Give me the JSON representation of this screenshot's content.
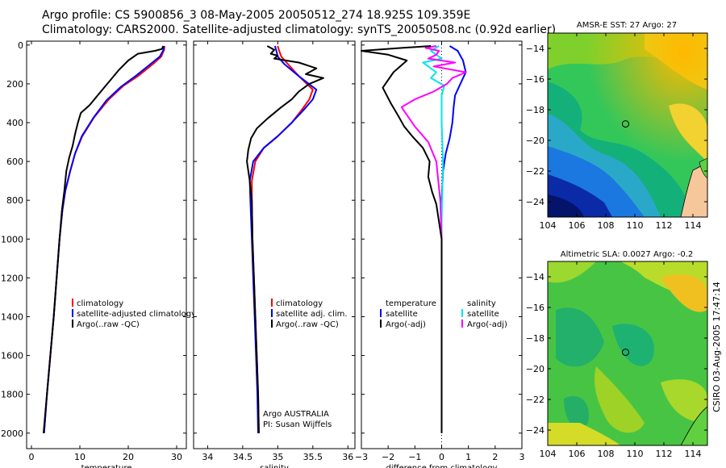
{
  "header": {
    "line1": "Argo profile: CS 5900856_3 08-May-2005 20050512_274 18.925S 109.359E",
    "line2": "Climatology: CARS2000. Satellite-adjusted climatology: synTS_20050508.nc (0.92d earlier)"
  },
  "credit": "CSIRO 03-Aug-2005 17:47:14",
  "argo_note": {
    "line1": "Argo AUSTRALIA",
    "line2": "PI: Susan Wijffels"
  },
  "colors": {
    "climatology": "#ff0000",
    "satellite": "#0000ff",
    "argo": "#000000",
    "sal_satellite": "#00e5ee",
    "sal_argo": "#ff00ff"
  },
  "chart_data": [
    {
      "type": "line",
      "id": "temperature",
      "xlabel": "temperature",
      "ylabel": "",
      "xlim": [
        -1,
        32
      ],
      "ylim": [
        2080,
        -20
      ],
      "y_reversed": true,
      "xticks": [
        0,
        10,
        20,
        30
      ],
      "yticks": [
        0,
        200,
        400,
        600,
        800,
        1000,
        1200,
        1400,
        1600,
        1800,
        2000
      ],
      "legend": [
        "climatology",
        "satellite-adjusted climatology",
        "Argo(..raw -QC)"
      ],
      "series": [
        {
          "name": "climatology",
          "color": "#ff0000",
          "points": [
            [
              27.5,
              5
            ],
            [
              27.4,
              25
            ],
            [
              26.8,
              60
            ],
            [
              25,
              100
            ],
            [
              22,
              160
            ],
            [
              19,
              210
            ],
            [
              16,
              280
            ],
            [
              13,
              370
            ],
            [
              10.5,
              470
            ],
            [
              9,
              560
            ],
            [
              8,
              650
            ],
            [
              7,
              750
            ],
            [
              6.4,
              850
            ],
            [
              5.8,
              1000
            ],
            [
              5.2,
              1200
            ],
            [
              4.6,
              1400
            ],
            [
              3.9,
              1600
            ],
            [
              3.2,
              1800
            ],
            [
              2.6,
              2000
            ]
          ]
        },
        {
          "name": "satellite-adjusted climatology",
          "color": "#0000ff",
          "points": [
            [
              27.3,
              5
            ],
            [
              27.3,
              25
            ],
            [
              26.5,
              60
            ],
            [
              24.5,
              100
            ],
            [
              21.5,
              160
            ],
            [
              18.5,
              215
            ],
            [
              15.5,
              285
            ],
            [
              12.8,
              375
            ],
            [
              10.4,
              470
            ],
            [
              9,
              560
            ],
            [
              8,
              650
            ],
            [
              7,
              750
            ],
            [
              6.4,
              850
            ],
            [
              5.8,
              1000
            ],
            [
              5.2,
              1200
            ],
            [
              4.6,
              1400
            ],
            [
              3.9,
              1600
            ],
            [
              3.2,
              1800
            ],
            [
              2.6,
              2000
            ]
          ]
        },
        {
          "name": "Argo(..raw -QC)",
          "color": "#000000",
          "points": [
            [
              27.2,
              5
            ],
            [
              27,
              20
            ],
            [
              25.5,
              30
            ],
            [
              22,
              45
            ],
            [
              20,
              80
            ],
            [
              18,
              130
            ],
            [
              16,
              190
            ],
            [
              14,
              250
            ],
            [
              12,
              310
            ],
            [
              10.2,
              350
            ],
            [
              9.6,
              400
            ],
            [
              9,
              460
            ],
            [
              8.5,
              520
            ],
            [
              7.8,
              580
            ],
            [
              7.2,
              650
            ],
            [
              6.8,
              750
            ],
            [
              6.3,
              850
            ],
            [
              5.8,
              1000
            ],
            [
              5.2,
              1200
            ],
            [
              4.6,
              1400
            ],
            [
              3.9,
              1600
            ],
            [
              3.2,
              1800
            ],
            [
              2.5,
              2000
            ]
          ]
        }
      ]
    },
    {
      "type": "line",
      "id": "salinity",
      "xlabel": "salinity",
      "ylabel": "",
      "xlim": [
        33.8,
        36.1
      ],
      "ylim": [
        2080,
        -20
      ],
      "y_reversed": true,
      "xticks": [
        34,
        34.5,
        35,
        35.5,
        36
      ],
      "legend": [
        "climatology",
        "satellite adj. clim.",
        "Argo(..raw -QC)"
      ],
      "series": [
        {
          "name": "climatology",
          "color": "#ff0000",
          "points": [
            [
              35.0,
              5
            ],
            [
              35.02,
              30
            ],
            [
              35.05,
              60
            ],
            [
              35.15,
              100
            ],
            [
              35.3,
              160
            ],
            [
              35.5,
              230
            ],
            [
              35.45,
              280
            ],
            [
              35.35,
              330
            ],
            [
              35.2,
              400
            ],
            [
              35.0,
              470
            ],
            [
              34.8,
              530
            ],
            [
              34.68,
              600
            ],
            [
              34.63,
              700
            ],
            [
              34.63,
              800
            ],
            [
              34.64,
              1000
            ],
            [
              34.66,
              1200
            ],
            [
              34.68,
              1400
            ],
            [
              34.7,
              1600
            ],
            [
              34.72,
              1800
            ],
            [
              34.73,
              2000
            ]
          ]
        },
        {
          "name": "satellite adj. clim.",
          "color": "#0000ff",
          "points": [
            [
              34.96,
              5
            ],
            [
              34.98,
              30
            ],
            [
              35.0,
              60
            ],
            [
              35.1,
              100
            ],
            [
              35.3,
              160
            ],
            [
              35.55,
              230
            ],
            [
              35.5,
              280
            ],
            [
              35.38,
              330
            ],
            [
              35.2,
              400
            ],
            [
              35.0,
              470
            ],
            [
              34.8,
              530
            ],
            [
              34.65,
              600
            ],
            [
              34.6,
              700
            ],
            [
              34.61,
              800
            ],
            [
              34.63,
              1000
            ],
            [
              34.65,
              1200
            ],
            [
              34.67,
              1400
            ],
            [
              34.69,
              1600
            ],
            [
              34.71,
              1800
            ],
            [
              34.72,
              2000
            ]
          ]
        },
        {
          "name": "Argo(..raw -QC)",
          "color": "#000000",
          "points": [
            [
              34.85,
              5
            ],
            [
              34.95,
              25
            ],
            [
              34.9,
              45
            ],
            [
              35.0,
              55
            ],
            [
              34.95,
              70
            ],
            [
              35.3,
              90
            ],
            [
              35.55,
              120
            ],
            [
              35.4,
              150
            ],
            [
              35.65,
              170
            ],
            [
              35.45,
              200
            ],
            [
              35.3,
              240
            ],
            [
              35.2,
              280
            ],
            [
              35.05,
              320
            ],
            [
              34.85,
              380
            ],
            [
              34.7,
              430
            ],
            [
              34.62,
              480
            ],
            [
              34.58,
              540
            ],
            [
              34.56,
              600
            ],
            [
              34.6,
              700
            ],
            [
              34.63,
              800
            ],
            [
              34.64,
              1000
            ],
            [
              34.66,
              1200
            ],
            [
              34.68,
              1400
            ],
            [
              34.7,
              1600
            ],
            [
              34.72,
              1800
            ],
            [
              34.73,
              2000
            ]
          ]
        }
      ]
    },
    {
      "type": "line",
      "id": "difference",
      "xlabel": "difference from climatology",
      "ylabel": "",
      "xlim": [
        -3,
        3
      ],
      "ylim": [
        2080,
        -20
      ],
      "y_reversed": true,
      "xticks": [
        -3,
        -2,
        -1,
        0,
        1,
        2,
        3
      ],
      "legend_left": [
        "temperature",
        "satellite",
        "Argo(-adj)"
      ],
      "legend_right": [
        "salinity",
        "satellite",
        "Argo(-adj)"
      ],
      "series": [
        {
          "name": "temperature satellite",
          "color": "#0000ff",
          "points": [
            [
              0.3,
              5
            ],
            [
              0.6,
              30
            ],
            [
              0.8,
              80
            ],
            [
              0.9,
              140
            ],
            [
              0.7,
              200
            ],
            [
              0.5,
              260
            ],
            [
              0.45,
              320
            ],
            [
              0.4,
              400
            ],
            [
              0.3,
              480
            ],
            [
              0.15,
              560
            ],
            [
              0.05,
              650
            ],
            [
              0,
              800
            ],
            [
              0,
              1000
            ],
            [
              0,
              2000
            ]
          ]
        },
        {
          "name": "salinity satellite",
          "color": "#00e5ee",
          "points": [
            [
              -0.1,
              5
            ],
            [
              -0.4,
              30
            ],
            [
              -0.2,
              50
            ],
            [
              0.0,
              70
            ],
            [
              -0.7,
              90
            ],
            [
              -0.5,
              110
            ],
            [
              -0.2,
              140
            ],
            [
              -0.4,
              170
            ],
            [
              0.1,
              210
            ],
            [
              0.0,
              260
            ],
            [
              0.0,
              400
            ],
            [
              0.05,
              600
            ],
            [
              0.0,
              900
            ],
            [
              0.0,
              1200
            ],
            [
              0.0,
              1500
            ],
            [
              0.0,
              1800
            ],
            [
              0.0,
              2000
            ]
          ]
        },
        {
          "name": "salinity Argo(-adj)",
          "color": "#ff00ff",
          "points": [
            [
              -0.2,
              5
            ],
            [
              -0.6,
              15
            ],
            [
              -0.1,
              30
            ],
            [
              -0.2,
              50
            ],
            [
              -0.5,
              70
            ],
            [
              0.5,
              90
            ],
            [
              -0.3,
              110
            ],
            [
              0.9,
              140
            ],
            [
              0.4,
              170
            ],
            [
              0.2,
              200
            ],
            [
              -0.3,
              240
            ],
            [
              -1.0,
              280
            ],
            [
              -1.5,
              320
            ],
            [
              -1.3,
              360
            ],
            [
              -1.0,
              420
            ],
            [
              -0.5,
              500
            ],
            [
              -0.2,
              600
            ],
            [
              -0.05,
              800
            ],
            [
              0,
              1000
            ]
          ]
        },
        {
          "name": "temperature Argo(-adj)",
          "color": "#000000",
          "points": [
            [
              -0.4,
              5
            ],
            [
              -1.5,
              15
            ],
            [
              -3.0,
              30
            ],
            [
              -2.0,
              50
            ],
            [
              -1.3,
              80
            ],
            [
              -1.8,
              140
            ],
            [
              -2.2,
              220
            ],
            [
              -1.9,
              300
            ],
            [
              -1.6,
              370
            ],
            [
              -1.4,
              420
            ],
            [
              -1.1,
              470
            ],
            [
              -0.7,
              530
            ],
            [
              -0.45,
              600
            ],
            [
              -0.5,
              680
            ],
            [
              -0.35,
              760
            ],
            [
              -0.2,
              820
            ],
            [
              0,
              1000
            ],
            [
              0,
              2000
            ]
          ]
        }
      ]
    },
    {
      "type": "heatmap",
      "id": "sst_map",
      "title": "AMSR-E SST: 27 Argo: 27",
      "xlim": [
        104,
        115
      ],
      "ylim": [
        -25,
        -13
      ],
      "xticks": [
        104,
        106,
        108,
        110,
        112,
        114
      ],
      "yticks": [
        -14,
        -16,
        -18,
        -20,
        -22,
        -24
      ],
      "profile_location": [
        109.359,
        -18.925
      ]
    },
    {
      "type": "heatmap",
      "id": "sla_map",
      "title": "Altimetric SLA: 0.0027 Argo: -0.2",
      "xlim": [
        104,
        115
      ],
      "ylim": [
        -25,
        -13
      ],
      "xticks": [
        104,
        106,
        108,
        110,
        112,
        114
      ],
      "yticks": [
        -14,
        -16,
        -18,
        -20,
        -22,
        -24
      ],
      "profile_location": [
        109.359,
        -18.925
      ]
    }
  ]
}
